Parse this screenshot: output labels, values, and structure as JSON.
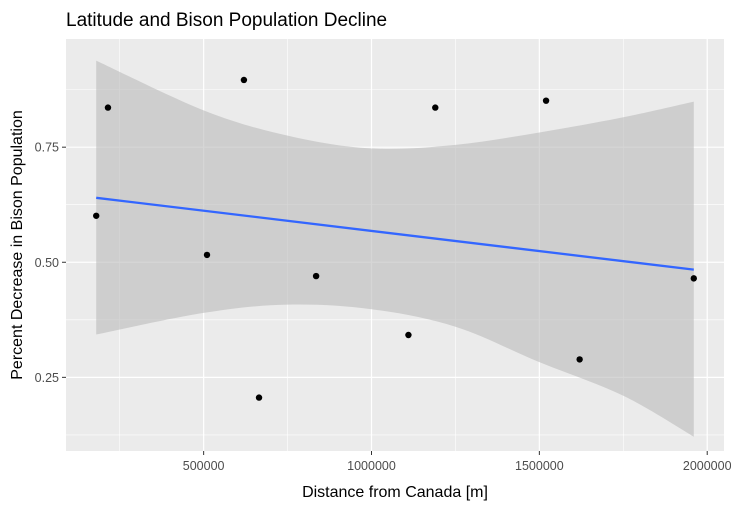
{
  "chart_data": {
    "type": "scatter",
    "title": "Latitude and Bison Population Decline",
    "xlabel": "Distance from Canada [m]",
    "ylabel": "Percent Decrease in Bison Population",
    "xlim": [
      90000,
      2050000
    ],
    "ylim": [
      0.09,
      0.985
    ],
    "x_ticks": [
      {
        "value": 500000,
        "label": "500000"
      },
      {
        "value": 1000000,
        "label": "1000000"
      },
      {
        "value": 1500000,
        "label": "1500000"
      },
      {
        "value": 2000000,
        "label": "2000000"
      }
    ],
    "y_ticks": [
      {
        "value": 0.25,
        "label": "0.25"
      },
      {
        "value": 0.5,
        "label": "0.50"
      },
      {
        "value": 0.75,
        "label": "0.75"
      }
    ],
    "grid": true,
    "colors": {
      "panel_background": "#ebebeb",
      "grid": "#ffffff",
      "point": "#000000",
      "trend_line": "#3366ff",
      "confidence_band": "#bdbdbd"
    },
    "points": [
      {
        "x": 180000,
        "y": 0.601
      },
      {
        "x": 215000,
        "y": 0.836
      },
      {
        "x": 510000,
        "y": 0.516
      },
      {
        "x": 620000,
        "y": 0.896
      },
      {
        "x": 665000,
        "y": 0.206
      },
      {
        "x": 835000,
        "y": 0.47
      },
      {
        "x": 1110000,
        "y": 0.342
      },
      {
        "x": 1190000,
        "y": 0.836
      },
      {
        "x": 1520000,
        "y": 0.851
      },
      {
        "x": 1620000,
        "y": 0.289
      },
      {
        "x": 1960000,
        "y": 0.465
      }
    ],
    "trend_line": {
      "method": "lm",
      "x": [
        180000,
        1960000
      ],
      "y": [
        0.64,
        0.484
      ]
    },
    "confidence_band": {
      "x": [
        180000,
        500000,
        750000,
        1000000,
        1250000,
        1500000,
        1750000,
        1960000
      ],
      "upper": [
        0.938,
        0.83,
        0.775,
        0.747,
        0.755,
        0.782,
        0.815,
        0.849
      ],
      "lower": [
        0.343,
        0.39,
        0.408,
        0.398,
        0.36,
        0.283,
        0.21,
        0.121
      ]
    }
  }
}
